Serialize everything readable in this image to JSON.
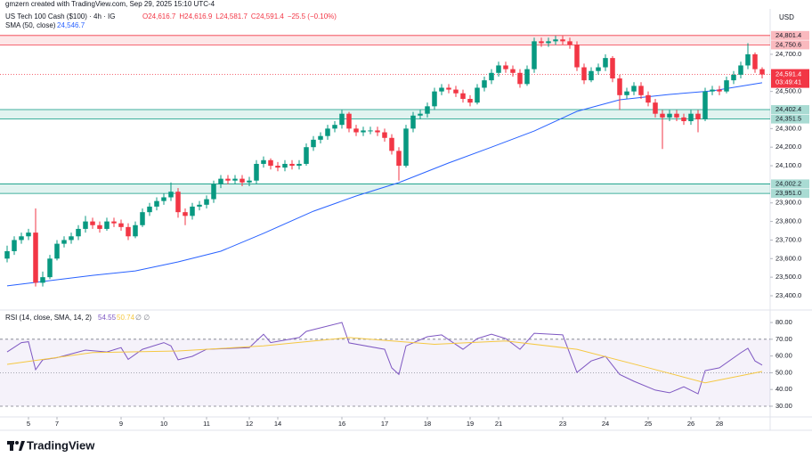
{
  "header": {
    "credit": "gmzern created with TradingView.com, Sep 29, 2025 15:10 UTC-4",
    "symbol": "US Tech 100 Cash ($100) · 4h · IG",
    "ohlc": [
      "O24,616.7",
      "H24,616.9",
      "L24,581.7",
      "C24,591.4",
      "−25.5 (−0.10%)"
    ],
    "sma_label": "SMA (50, close)",
    "sma_value": "24,546.7",
    "currency": "USD",
    "logo": "TradingView"
  },
  "chart_data": [
    {
      "type": "candlestick",
      "up_color": "#089981",
      "down_color": "#f23645",
      "open": [
        23600,
        23640,
        23700,
        23720,
        23740,
        23470,
        23500,
        23600,
        23680,
        23700,
        23720,
        23760,
        23800,
        23780,
        23760,
        23800,
        23790,
        23770,
        23720,
        23780,
        23850,
        23880,
        23910,
        23930,
        23960,
        23850,
        23830,
        23880,
        23890,
        23920,
        24000,
        24030,
        24020,
        24030,
        24010,
        24020,
        24110,
        24130,
        24100,
        24090,
        24110,
        24100,
        24110,
        24200,
        24240,
        24260,
        24300,
        24320,
        24380,
        24300,
        24280,
        24290,
        24290,
        24280,
        24250,
        24180,
        24100,
        24300,
        24370,
        24380,
        24420,
        24500,
        24520,
        24510,
        24490,
        24460,
        24440,
        24520,
        24560,
        24600,
        24640,
        24620,
        24600,
        24540,
        24620,
        24770,
        24760,
        24770,
        24780,
        24770,
        24750,
        24630,
        24560,
        24610,
        24630,
        24680,
        24570,
        24480,
        24500,
        24530,
        24480,
        24440,
        24380,
        24360,
        24380,
        24360,
        24340,
        24380,
        24350,
        24500,
        24510,
        24500,
        24560,
        24590,
        24640,
        24700,
        24620
      ],
      "high": [
        23670,
        23720,
        23740,
        23760,
        23870,
        23530,
        23620,
        23700,
        23720,
        23740,
        23780,
        23830,
        23820,
        23800,
        23820,
        23820,
        23810,
        23790,
        23800,
        23870,
        23900,
        23930,
        23950,
        24010,
        23980,
        23870,
        23900,
        23910,
        23940,
        24020,
        24050,
        24050,
        24050,
        24050,
        24040,
        24130,
        24150,
        24140,
        24120,
        24130,
        24130,
        24130,
        24220,
        24260,
        24280,
        24320,
        24340,
        24400,
        24390,
        24320,
        24310,
        24310,
        24310,
        24300,
        24270,
        24200,
        24320,
        24390,
        24400,
        24440,
        24520,
        24540,
        24540,
        24530,
        24510,
        24480,
        24540,
        24580,
        24620,
        24660,
        24660,
        24640,
        24620,
        24640,
        24790,
        24790,
        24790,
        24800,
        24800,
        24790,
        24770,
        24650,
        24630,
        24650,
        24700,
        24690,
        24590,
        24520,
        24550,
        24550,
        24500,
        24460,
        24400,
        24400,
        24400,
        24380,
        24400,
        24400,
        24520,
        24530,
        24530,
        24580,
        24610,
        24660,
        24760,
        24710,
        24630
      ],
      "low": [
        23580,
        23620,
        23680,
        23700,
        23450,
        23450,
        23490,
        23590,
        23660,
        23680,
        23700,
        23740,
        23760,
        23740,
        23750,
        23770,
        23750,
        23700,
        23710,
        23770,
        23830,
        23860,
        23890,
        23910,
        23820,
        23780,
        23810,
        23860,
        23870,
        23900,
        23980,
        24000,
        24000,
        23990,
        23990,
        24000,
        24090,
        24080,
        24070,
        24070,
        24080,
        24080,
        24100,
        24180,
        24220,
        24240,
        24280,
        24300,
        24280,
        24260,
        24260,
        24270,
        24260,
        24230,
        24160,
        24020,
        24090,
        24280,
        24350,
        24360,
        24400,
        24480,
        24490,
        24470,
        24440,
        24420,
        24430,
        24500,
        24540,
        24580,
        24600,
        24580,
        24520,
        24530,
        24600,
        24740,
        24740,
        24750,
        24750,
        24730,
        24610,
        24540,
        24550,
        24590,
        24610,
        24550,
        24400,
        24460,
        24480,
        24460,
        24420,
        24360,
        24190,
        24340,
        24340,
        24320,
        24320,
        24280,
        24340,
        24480,
        24480,
        24490,
        24540,
        24570,
        24620,
        24600,
        24570
      ],
      "close": [
        23640,
        23700,
        23720,
        23740,
        23470,
        23500,
        23600,
        23680,
        23700,
        23720,
        23760,
        23800,
        23780,
        23760,
        23800,
        23790,
        23770,
        23720,
        23780,
        23850,
        23880,
        23910,
        23930,
        23960,
        23850,
        23830,
        23880,
        23890,
        23920,
        24000,
        24030,
        24020,
        24030,
        24010,
        24020,
        24110,
        24130,
        24100,
        24090,
        24110,
        24100,
        24110,
        24200,
        24240,
        24260,
        24300,
        24320,
        24380,
        24300,
        24280,
        24290,
        24290,
        24280,
        24250,
        24180,
        24100,
        24300,
        24370,
        24380,
        24420,
        24500,
        24520,
        24510,
        24490,
        24460,
        24440,
        24520,
        24560,
        24600,
        24640,
        24620,
        24600,
        24540,
        24620,
        24770,
        24760,
        24770,
        24780,
        24770,
        24750,
        24630,
        24560,
        24610,
        24630,
        24680,
        24570,
        24480,
        24500,
        24530,
        24480,
        24440,
        24380,
        24360,
        24380,
        24360,
        24340,
        24380,
        24350,
        24500,
        24510,
        24500,
        24560,
        24590,
        24640,
        24700,
        24620,
        24591.4
      ],
      "sma": {
        "name": "SMA (50, close)",
        "color": "#2962ff",
        "x": [
          0,
          12,
          18,
          24,
          30,
          36,
          43,
          49,
          55,
          62,
          68,
          74,
          80,
          86,
          93,
          99,
          106
        ],
        "values": [
          23453,
          23510,
          23534,
          23582,
          23640,
          23736,
          23855,
          23937,
          24009,
          24115,
          24200,
          24287,
          24393,
          24455,
          24484,
          24503,
          24546.7
        ]
      },
      "zones": [
        {
          "color": "#f23645",
          "low": 24750.6,
          "high": 24801.4,
          "low_label": "24,750.6",
          "high_label": "24,801.4"
        },
        {
          "color": "#089981",
          "low": 24351.5,
          "high": 24402.4,
          "low_label": "24,351.5",
          "high_label": "24,402.4"
        },
        {
          "color": "#089981",
          "low": 23951.0,
          "high": 24002.2,
          "low_label": "23,951.0",
          "high_label": "24,002.2"
        }
      ],
      "last": {
        "value": 24591.4,
        "label": "24,591.4",
        "countdown": "03:49:41",
        "color": "#f23645"
      },
      "xlim": [
        -1,
        107.125
      ],
      "ylim": [
        23337.6,
        24944.4
      ],
      "yticks": [
        {
          "value": 23400,
          "label": "23,400.0"
        },
        {
          "value": 23500,
          "label": "23,500.0"
        },
        {
          "value": 23600,
          "label": "23,600.0"
        },
        {
          "value": 23700,
          "label": "23,700.0"
        },
        {
          "value": 23800,
          "label": "23,800.0"
        },
        {
          "value": 23900,
          "label": "23,900.0"
        },
        {
          "value": 24100,
          "label": "24,100.0"
        },
        {
          "value": 24200,
          "label": "24,200.0"
        },
        {
          "value": 24300,
          "label": "24,300.0"
        },
        {
          "value": 24500,
          "label": "24,500.0"
        },
        {
          "value": 24700,
          "label": "24,700.0"
        }
      ],
      "xticks": [
        {
          "value": 3,
          "label": "5"
        },
        {
          "value": 7,
          "label": "7"
        },
        {
          "value": 16,
          "label": "9"
        },
        {
          "value": 22,
          "label": "10"
        },
        {
          "value": 28,
          "label": "11"
        },
        {
          "value": 34,
          "label": "12"
        },
        {
          "value": 38,
          "label": "14"
        },
        {
          "value": 47,
          "label": "16"
        },
        {
          "value": 53,
          "label": "17"
        },
        {
          "value": 59,
          "label": "18"
        },
        {
          "value": 65,
          "label": "19"
        },
        {
          "value": 69,
          "label": "21"
        },
        {
          "value": 78,
          "label": "23"
        },
        {
          "value": 84,
          "label": "24"
        },
        {
          "value": 90,
          "label": "25"
        },
        {
          "value": 96,
          "label": "26"
        },
        {
          "value": 100,
          "label": "28"
        }
      ]
    },
    {
      "type": "line",
      "title": "RSI (14, close, SMA, 14, 2)",
      "legend_values": [
        "54.55",
        "50.74",
        "∅ ∅"
      ],
      "series": [
        {
          "name": "RSI",
          "color": "#7e57c2",
          "x": [
            0,
            2,
            3,
            4,
            5,
            7,
            11,
            14,
            16,
            17,
            19,
            22,
            23,
            24,
            26,
            28,
            34,
            36,
            37,
            41,
            42,
            47,
            48,
            53,
            54,
            55,
            56,
            59,
            61,
            64,
            66,
            68,
            70,
            72,
            74,
            78,
            80,
            82,
            84,
            86,
            88,
            91,
            93,
            95,
            97,
            98,
            100,
            103,
            104,
            105,
            106
          ],
          "values": [
            62.4,
            68,
            68.5,
            51.8,
            57.7,
            59,
            63.5,
            62.4,
            65,
            58,
            64,
            68,
            66,
            57.7,
            59.8,
            64,
            65,
            73,
            68,
            71,
            74.7,
            80,
            67.8,
            64,
            52.9,
            49,
            66,
            71.5,
            72.6,
            64,
            70.4,
            73,
            70.4,
            64,
            73.6,
            72.6,
            50.2,
            57,
            59.8,
            49,
            44.9,
            39.6,
            38,
            41.6,
            37.4,
            51.3,
            52.9,
            61.9,
            64.6,
            57,
            54.55
          ]
        },
        {
          "name": "RSI SMA",
          "color": "#f5c842",
          "x": [
            0,
            12,
            24,
            36,
            48,
            60,
            70,
            80,
            90,
            98,
            106
          ],
          "values": [
            55,
            62,
            63,
            66,
            71,
            67,
            69,
            64,
            53,
            44,
            50.74
          ]
        }
      ],
      "bands": {
        "upper": 70,
        "lower": 30,
        "middle": 50,
        "fill": "#7e57c2"
      },
      "xlim": [
        -1,
        107.125
      ],
      "ylim": [
        23.6,
        86.4
      ],
      "yticks": [
        {
          "value": 30,
          "label": "30.00"
        },
        {
          "value": 40,
          "label": "40.00"
        },
        {
          "value": 50,
          "label": "50.00"
        },
        {
          "value": 60,
          "label": "60.00"
        },
        {
          "value": 70,
          "label": "70.00"
        },
        {
          "value": 80,
          "label": "80.00"
        }
      ]
    }
  ]
}
